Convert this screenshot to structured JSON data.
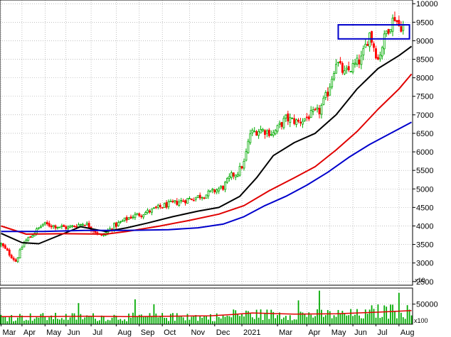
{
  "chart_data": {
    "type": "candlestick",
    "price_panel": {
      "ylim": [
        2400,
        10100
      ],
      "yticks": [
        2500,
        3000,
        3500,
        4000,
        4500,
        5000,
        5500,
        6000,
        6500,
        7000,
        7500,
        8000,
        8500,
        9000,
        9500,
        10000
      ],
      "ytick_labels": [
        "2500",
        "3000",
        "3500",
        "4000",
        "4500",
        "5000",
        "5500",
        "6000",
        "6500",
        "7000",
        "7500",
        "8000",
        "8500",
        "9000",
        "9500",
        "10000"
      ],
      "multiplier_label": "x10",
      "grid": true,
      "close_anchors": [
        {
          "t": 0,
          "v": 3500
        },
        {
          "t": 7,
          "v": 3050
        },
        {
          "t": 11,
          "v": 3550
        },
        {
          "t": 20,
          "v": 4050
        },
        {
          "t": 32,
          "v": 3950
        },
        {
          "t": 40,
          "v": 4080
        },
        {
          "t": 48,
          "v": 3720
        },
        {
          "t": 54,
          "v": 4000
        },
        {
          "t": 62,
          "v": 4250
        },
        {
          "t": 70,
          "v": 4380
        },
        {
          "t": 78,
          "v": 4550
        },
        {
          "t": 88,
          "v": 4700
        },
        {
          "t": 98,
          "v": 4850
        },
        {
          "t": 106,
          "v": 5050
        },
        {
          "t": 110,
          "v": 5350
        },
        {
          "t": 113,
          "v": 5450
        },
        {
          "t": 116,
          "v": 5700
        },
        {
          "t": 119,
          "v": 6500
        },
        {
          "t": 124,
          "v": 6600
        },
        {
          "t": 130,
          "v": 6500
        },
        {
          "t": 136,
          "v": 6900
        },
        {
          "t": 142,
          "v": 6800
        },
        {
          "t": 148,
          "v": 7000
        },
        {
          "t": 152,
          "v": 7100
        },
        {
          "t": 156,
          "v": 7600
        },
        {
          "t": 160,
          "v": 8450
        },
        {
          "t": 164,
          "v": 8100
        },
        {
          "t": 168,
          "v": 8300
        },
        {
          "t": 172,
          "v": 8500
        },
        {
          "t": 176,
          "v": 9200
        },
        {
          "t": 180,
          "v": 8500
        },
        {
          "t": 184,
          "v": 9250
        },
        {
          "t": 188,
          "v": 9650
        },
        {
          "t": 190,
          "v": 9400
        }
      ],
      "moving_averages": [
        {
          "color": "#000000",
          "points": [
            [
              0,
              3800
            ],
            [
              10,
              3550
            ],
            [
              18,
              3520
            ],
            [
              28,
              3750
            ],
            [
              38,
              3980
            ],
            [
              50,
              3850
            ],
            [
              60,
              3950
            ],
            [
              70,
              4080
            ],
            [
              82,
              4250
            ],
            [
              94,
              4400
            ],
            [
              104,
              4500
            ],
            [
              114,
              4800
            ],
            [
              122,
              5300
            ],
            [
              130,
              5900
            ],
            [
              140,
              6250
            ],
            [
              150,
              6500
            ],
            [
              160,
              7000
            ],
            [
              170,
              7700
            ],
            [
              180,
              8250
            ],
            [
              190,
              8600
            ],
            [
              196,
              8850
            ]
          ]
        },
        {
          "color": "#e00000",
          "points": [
            [
              0,
              4000
            ],
            [
              12,
              3780
            ],
            [
              30,
              3790
            ],
            [
              50,
              3780
            ],
            [
              60,
              3850
            ],
            [
              76,
              4000
            ],
            [
              90,
              4150
            ],
            [
              104,
              4320
            ],
            [
              116,
              4550
            ],
            [
              128,
              4950
            ],
            [
              140,
              5300
            ],
            [
              150,
              5600
            ],
            [
              160,
              6050
            ],
            [
              170,
              6550
            ],
            [
              180,
              7150
            ],
            [
              190,
              7700
            ],
            [
              196,
              8100
            ]
          ]
        },
        {
          "color": "#0000cc",
          "points": [
            [
              0,
              3850
            ],
            [
              20,
              3850
            ],
            [
              40,
              3880
            ],
            [
              60,
              3880
            ],
            [
              80,
              3900
            ],
            [
              94,
              3950
            ],
            [
              106,
              4050
            ],
            [
              116,
              4250
            ],
            [
              126,
              4550
            ],
            [
              136,
              4800
            ],
            [
              146,
              5100
            ],
            [
              156,
              5450
            ],
            [
              166,
              5850
            ],
            [
              176,
              6200
            ],
            [
              186,
              6500
            ],
            [
              196,
              6800
            ]
          ]
        }
      ],
      "annotation_box": {
        "x0": 161,
        "x1": 195,
        "y0": 9050,
        "y1": 9430,
        "color": "#0000cc"
      }
    },
    "volume_panel": {
      "ylim": [
        0,
        90000
      ],
      "yticks": [
        50000
      ],
      "ytick_labels": [
        "50000"
      ],
      "multiplier_label": "x100",
      "bar_color": "#00aa00",
      "ma_color": "#e00000",
      "base_level": 18000,
      "ma_points": [
        [
          0,
          19000
        ],
        [
          20,
          19000
        ],
        [
          40,
          20000
        ],
        [
          60,
          19000
        ],
        [
          80,
          20000
        ],
        [
          100,
          21000
        ],
        [
          110,
          24000
        ],
        [
          120,
          28000
        ],
        [
          140,
          25000
        ],
        [
          160,
          26000
        ],
        [
          180,
          30000
        ],
        [
          196,
          34000
        ]
      ]
    },
    "x_axis": {
      "n_sessions": 197,
      "labels": [
        {
          "t": 0,
          "text": "Mar"
        },
        {
          "t": 10,
          "text": "Apr"
        },
        {
          "t": 21,
          "text": "May"
        },
        {
          "t": 31,
          "text": "Jun"
        },
        {
          "t": 43,
          "text": "Jul"
        },
        {
          "t": 55,
          "text": "Aug"
        },
        {
          "t": 66,
          "text": "Sep"
        },
        {
          "t": 77,
          "text": "Oct"
        },
        {
          "t": 90,
          "text": "Nov"
        },
        {
          "t": 102,
          "text": "Dec"
        },
        {
          "t": 115,
          "text": "2021"
        },
        {
          "t": 132,
          "text": "Mar"
        },
        {
          "t": 146,
          "text": "Apr"
        },
        {
          "t": 157,
          "text": "May"
        },
        {
          "t": 168,
          "text": "Jun"
        },
        {
          "t": 179,
          "text": "Jul"
        },
        {
          "t": 190,
          "text": "Aug"
        }
      ]
    }
  }
}
